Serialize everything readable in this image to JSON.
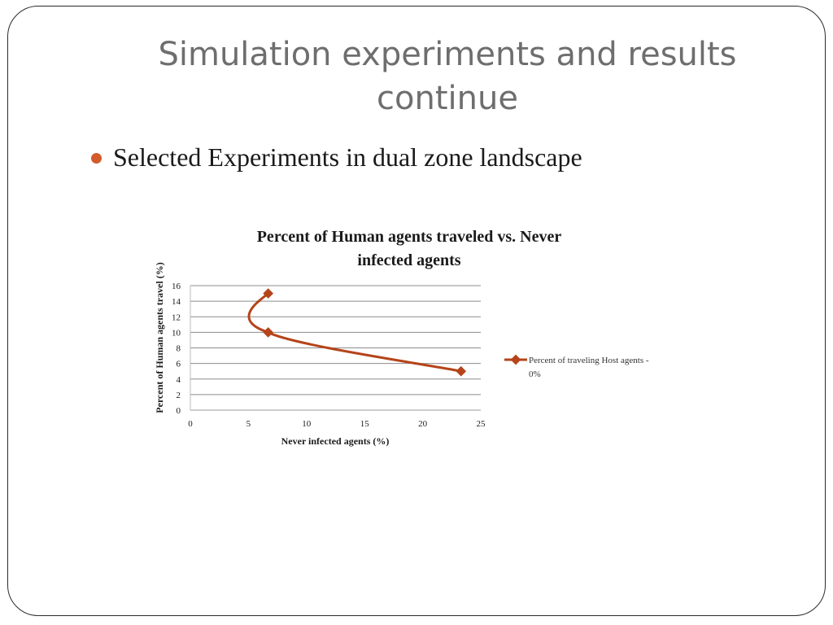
{
  "slide": {
    "title_line1": "Simulation experiments and results",
    "title_line2": "continue",
    "bullet": "Selected Experiments in dual zone landscape"
  },
  "chart_data": {
    "type": "scatter",
    "title_line1": "Percent of Human agents traveled vs. Never",
    "title_line2": "infected agents",
    "xlabel": "Never infected agents (%)",
    "ylabel": "Percent of Human agents travel (%)",
    "xlim": [
      0,
      25
    ],
    "ylim": [
      0,
      16
    ],
    "x_ticks": [
      "0",
      "5",
      "10",
      "15",
      "20",
      "25"
    ],
    "y_ticks": [
      "0",
      "2",
      "4",
      "6",
      "8",
      "10",
      "12",
      "14",
      "16"
    ],
    "grid": true,
    "smooth_lines": true,
    "legend_position": "right",
    "series": [
      {
        "name_line1": "Percent of traveling Host agents -",
        "name_line2": "0%",
        "color": "#b5441a",
        "marker": "diamond",
        "points": [
          {
            "x": 6.7,
            "y": 15
          },
          {
            "x": 6.7,
            "y": 10
          },
          {
            "x": 23.3,
            "y": 5
          }
        ]
      }
    ]
  }
}
